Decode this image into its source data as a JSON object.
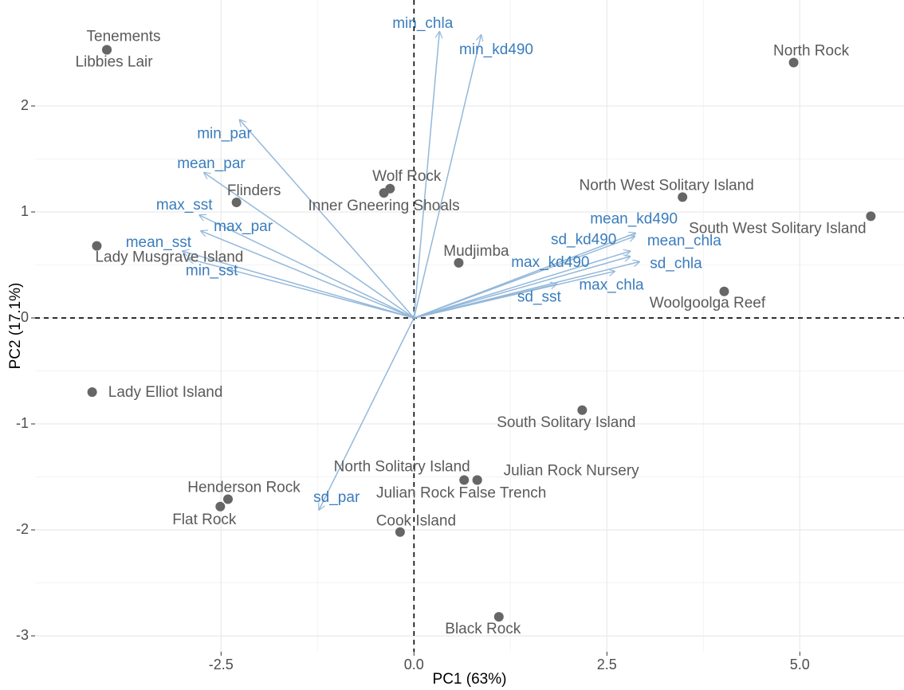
{
  "chart_data": {
    "type": "biplot",
    "x_label": "PC1 (63%)",
    "y_label": "PC2 (17.1%)",
    "xlim": [
      -4.91,
      6.35
    ],
    "ylim": [
      -3.15,
      3.0
    ],
    "xticks": [
      -2.5,
      {
        "value": 0,
        "label": "0.0"
      },
      2.5,
      {
        "value": 5,
        "label": "5.0"
      }
    ],
    "yticks": [
      -3,
      -2,
      -1,
      0,
      1,
      2
    ],
    "grid": true,
    "points": {
      "color": "#666666",
      "labels": [
        "Tenements",
        "Libbies Lair",
        "North Rock",
        "Flinders",
        "Wolf Rock",
        "Inner Gneering Shoals",
        "North West Solitary Island",
        "South West Solitary Island",
        "Lady Musgrave Island",
        "Mudjimba",
        "Woolgoolga Reef",
        "Lady Elliot Island",
        "South Solitary Island",
        "North Solitary Island",
        "Julian Rock Nursery",
        "Julian Rock False Trench",
        "Henderson Rock",
        "Flat Rock",
        "Cook Island",
        "Black Rock"
      ],
      "x": [
        -3.98,
        -3.98,
        4.92,
        -2.3,
        -0.31,
        -0.39,
        3.48,
        5.92,
        -4.11,
        0.58,
        4.02,
        -4.17,
        2.18,
        0.65,
        0.82,
        0.82,
        -2.41,
        -2.51,
        -0.18,
        1.1
      ],
      "y": [
        2.53,
        2.53,
        2.41,
        1.09,
        1.22,
        1.18,
        1.14,
        0.96,
        0.68,
        0.52,
        0.25,
        -0.7,
        -0.87,
        -1.53,
        -1.53,
        -1.53,
        -1.71,
        -1.78,
        -2.02,
        -2.82
      ]
    },
    "loadings": {
      "color": "#93b8da",
      "label_color": "#3a7dbd",
      "labels": [
        "min_chla",
        "min_kd490",
        "min_par",
        "mean_par",
        "max_sst",
        "max_par",
        "mean_sst",
        "min_sst",
        "mean_kd490",
        "sd_kd490",
        "mean_chla",
        "sd_chla",
        "max_kd490",
        "max_chla",
        "sd_sst",
        "sd_par"
      ],
      "x": [
        0.33,
        0.87,
        -2.26,
        -2.72,
        -2.78,
        -2.76,
        -3.0,
        -2.93,
        2.87,
        2.86,
        2.8,
        2.92,
        2.8,
        2.6,
        1.85,
        -1.23
      ],
      "y": [
        2.7,
        2.67,
        1.87,
        1.37,
        0.97,
        0.82,
        0.63,
        0.56,
        0.8,
        0.77,
        0.63,
        0.53,
        0.58,
        0.44,
        0.32,
        -1.81
      ]
    }
  }
}
